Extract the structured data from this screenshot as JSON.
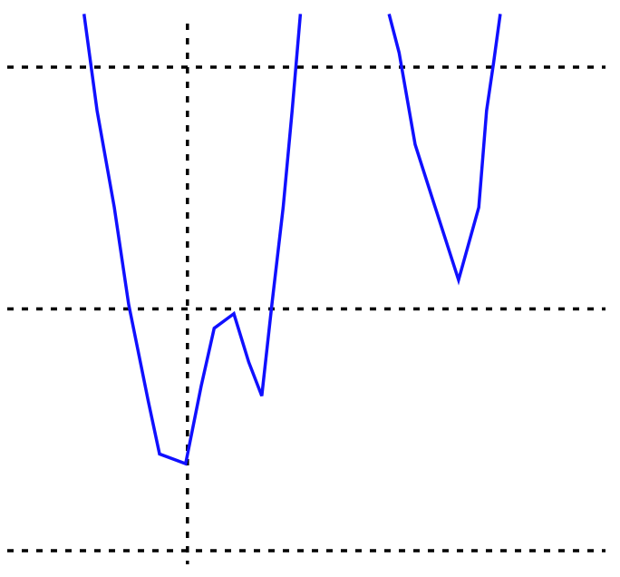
{
  "chart_data": {
    "type": "line",
    "title": "",
    "xlabel": "",
    "ylabel": "",
    "grid": true,
    "grid_style": "dotted",
    "line_color": "#1010ff",
    "grid_color": "#000000",
    "xlim": [
      0,
      100
    ],
    "ylim": [
      0,
      100
    ],
    "x_gridlines": [
      30
    ],
    "y_gridlines": [
      0,
      50,
      100
    ],
    "series": [
      {
        "segments": [
          {
            "x": [
              12.6,
              14.8,
              17.7,
              20.1,
              23.4,
              25.3,
              29.7,
              32.3,
              34.5,
              37.8,
              40.3,
              42.5,
              44.2,
              46.1,
              47.6,
              49.0
            ],
            "y": [
              111.0,
              91.0,
              71.0,
              51.0,
              31.0,
              20.0,
              18.0,
              34.0,
              46.0,
              49.0,
              39.0,
              32.0,
              51.0,
              71.0,
              91.0,
              111.0
            ]
          },
          {
            "x": [
              63.9,
              65.6,
              68.3,
              71.4,
              75.6,
              79.0,
              80.3,
              81.5,
              82.6
            ],
            "y": [
              111.0,
              103.0,
              84.0,
              72.0,
              56.0,
              71.0,
              91.0,
              101.0,
              111.0
            ]
          }
        ]
      }
    ]
  }
}
